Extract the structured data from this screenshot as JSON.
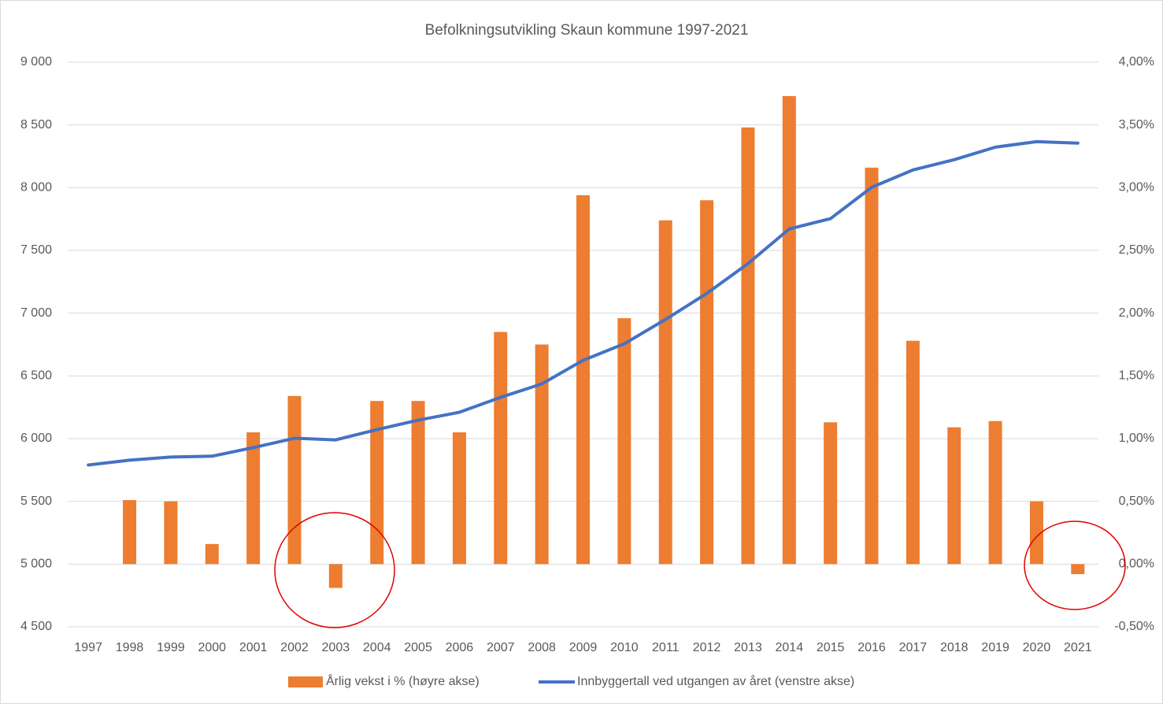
{
  "chart_data": {
    "type": "bar_line",
    "title": "Befolkningsutvikling Skaun kommune 1997-2021",
    "categories": [
      "1997",
      "1998",
      "1999",
      "2000",
      "2001",
      "2002",
      "2003",
      "2004",
      "2005",
      "2006",
      "2007",
      "2008",
      "2009",
      "2010",
      "2011",
      "2012",
      "2013",
      "2014",
      "2015",
      "2016",
      "2017",
      "2018",
      "2019",
      "2020",
      "2021"
    ],
    "series": [
      {
        "name": "Årlig vekst i % (høyre akse)",
        "type": "bar",
        "axis": "y2",
        "color": "#ed7d31",
        "values": [
          null,
          0.51,
          0.5,
          0.16,
          1.05,
          1.34,
          -0.19,
          1.3,
          1.3,
          1.05,
          1.85,
          1.75,
          2.94,
          1.96,
          2.74,
          2.9,
          3.48,
          3.73,
          1.13,
          3.16,
          1.78,
          1.09,
          1.14,
          0.5,
          -0.08
        ]
      },
      {
        "name": "Innbyggertall ved utgangen av året (venstre akse)",
        "type": "line",
        "axis": "y",
        "color": "#4472c4",
        "values": [
          5790,
          5828,
          5853,
          5860,
          5928,
          6003,
          5990,
          6072,
          6147,
          6210,
          6329,
          6436,
          6624,
          6756,
          6950,
          7157,
          7395,
          7671,
          7753,
          8003,
          8141,
          8223,
          8323,
          8367,
          8355
        ]
      }
    ],
    "ylim": [
      4500,
      9000
    ],
    "yticks": [
      {
        "value": 4500,
        "label": "4 500"
      },
      {
        "value": 5000,
        "label": "5 000"
      },
      {
        "value": 5500,
        "label": "5 500"
      },
      {
        "value": 6000,
        "label": "6 000"
      },
      {
        "value": 6500,
        "label": "6 500"
      },
      {
        "value": 7000,
        "label": "7 000"
      },
      {
        "value": 7500,
        "label": "7 500"
      },
      {
        "value": 8000,
        "label": "8 000"
      },
      {
        "value": 8500,
        "label": "8 500"
      },
      {
        "value": 9000,
        "label": "9 000"
      }
    ],
    "y2lim": [
      -0.5,
      4.0
    ],
    "y2ticks": [
      {
        "value": -0.5,
        "label": "-0,50%"
      },
      {
        "value": 0,
        "label": "0,00%"
      },
      {
        "value": 0.5,
        "label": "0,50%"
      },
      {
        "value": 1,
        "label": "1,00%"
      },
      {
        "value": 1.5,
        "label": "1,50%"
      },
      {
        "value": 2,
        "label": "2,00%"
      },
      {
        "value": 2.5,
        "label": "2,50%"
      },
      {
        "value": 3,
        "label": "3,00%"
      },
      {
        "value": 3.5,
        "label": "3,50%"
      },
      {
        "value": 4,
        "label": "4,00%"
      }
    ],
    "grid": true,
    "legend": "bottom"
  }
}
